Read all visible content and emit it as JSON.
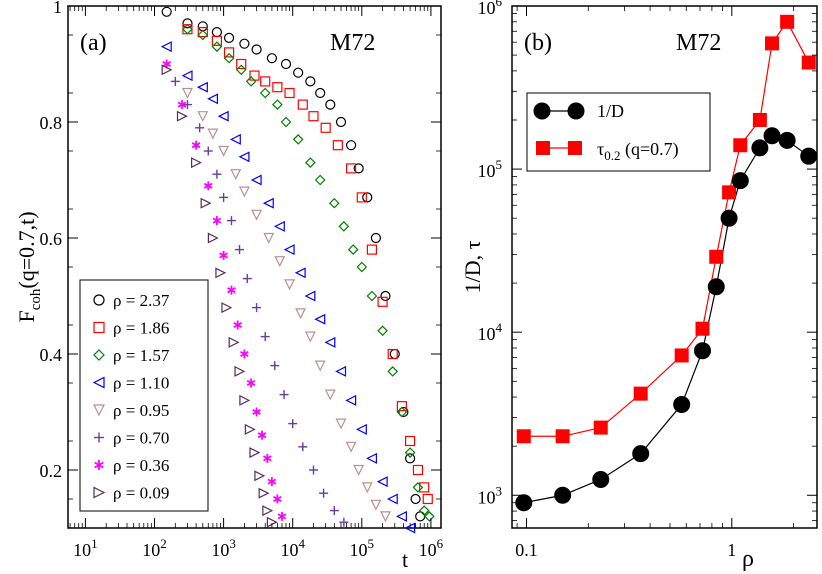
{
  "chart_data": [
    {
      "type": "scatter",
      "panel_label": "(a)",
      "model_label": "M72",
      "ylabel_main": "F",
      "ylabel_sub": "coh",
      "ylabel_rest": "(q=0.7,t)",
      "xlabel": "t",
      "xscale": "log",
      "xlim": [
        5.6,
        1400000
      ],
      "ylim": [
        0.1,
        1.0
      ],
      "x_ticks": [
        {
          "value": 10,
          "base": "10",
          "exp": "1"
        },
        {
          "value": 100,
          "base": "10",
          "exp": "2"
        },
        {
          "value": 1000,
          "base": "10",
          "exp": "3"
        },
        {
          "value": 10000,
          "base": "10",
          "exp": "4"
        },
        {
          "value": 100000,
          "base": "10",
          "exp": "5"
        },
        {
          "value": 1000000,
          "base": "10",
          "exp": "6"
        }
      ],
      "y_ticks": [
        {
          "value": 0.2,
          "label": "0.2"
        },
        {
          "value": 0.4,
          "label": "0.4"
        },
        {
          "value": 0.6,
          "label": "0.6"
        },
        {
          "value": 0.8,
          "label": "0.8"
        },
        {
          "value": 1.0,
          "label": "1"
        }
      ],
      "legend_position": "bottom-left",
      "series": [
        {
          "name": "ρ = 2.37",
          "marker": "circle",
          "color": "#000000",
          "points": [
            [
              150,
              0.99
            ],
            [
              300,
              0.97
            ],
            [
              500,
              0.965
            ],
            [
              800,
              0.955
            ],
            [
              1200,
              0.945
            ],
            [
              2000,
              0.935
            ],
            [
              3000,
              0.925
            ],
            [
              5000,
              0.91
            ],
            [
              8000,
              0.9
            ],
            [
              12000,
              0.885
            ],
            [
              18000,
              0.87
            ],
            [
              25000,
              0.85
            ],
            [
              35000,
              0.83
            ],
            [
              50000,
              0.8
            ],
            [
              70000,
              0.76
            ],
            [
              90000,
              0.72
            ],
            [
              120000,
              0.67
            ],
            [
              160000,
              0.6
            ],
            [
              220000,
              0.5
            ],
            [
              300000,
              0.4
            ],
            [
              400000,
              0.3
            ],
            [
              500000,
              0.22
            ],
            [
              600000,
              0.15
            ],
            [
              700000,
              0.12
            ]
          ]
        },
        {
          "name": "ρ = 1.86",
          "marker": "square",
          "color": "#ff0000",
          "points": [
            [
              300,
              0.96
            ],
            [
              500,
              0.955
            ],
            [
              800,
              0.94
            ],
            [
              1200,
              0.92
            ],
            [
              1800,
              0.9
            ],
            [
              2800,
              0.88
            ],
            [
              4000,
              0.87
            ],
            [
              6000,
              0.86
            ],
            [
              9000,
              0.85
            ],
            [
              14000,
              0.83
            ],
            [
              20000,
              0.81
            ],
            [
              30000,
              0.79
            ],
            [
              45000,
              0.76
            ],
            [
              70000,
              0.72
            ],
            [
              100000,
              0.67
            ],
            [
              140000,
              0.58
            ],
            [
              200000,
              0.49
            ],
            [
              280000,
              0.4
            ],
            [
              380000,
              0.31
            ],
            [
              500000,
              0.25
            ],
            [
              650000,
              0.2
            ],
            [
              800000,
              0.17
            ],
            [
              900000,
              0.15
            ]
          ]
        },
        {
          "name": "ρ = 1.57",
          "marker": "diamond",
          "color": "#008000",
          "points": [
            [
              300,
              0.96
            ],
            [
              500,
              0.95
            ],
            [
              800,
              0.93
            ],
            [
              1200,
              0.91
            ],
            [
              1800,
              0.89
            ],
            [
              2500,
              0.87
            ],
            [
              4000,
              0.85
            ],
            [
              6000,
              0.83
            ],
            [
              8000,
              0.8
            ],
            [
              12000,
              0.77
            ],
            [
              18000,
              0.73
            ],
            [
              25000,
              0.7
            ],
            [
              40000,
              0.66
            ],
            [
              55000,
              0.62
            ],
            [
              75000,
              0.58
            ],
            [
              100000,
              0.55
            ],
            [
              140000,
              0.5
            ],
            [
              200000,
              0.44
            ],
            [
              280000,
              0.37
            ],
            [
              380000,
              0.3
            ],
            [
              500000,
              0.23
            ],
            [
              650000,
              0.17
            ],
            [
              800000,
              0.13
            ],
            [
              950000,
              0.12
            ]
          ]
        },
        {
          "name": "ρ = 1.10",
          "marker": "triangle-left",
          "color": "#0000ff",
          "points": [
            [
              150,
              0.93
            ],
            [
              300,
              0.88
            ],
            [
              500,
              0.86
            ],
            [
              700,
              0.84
            ],
            [
              1000,
              0.81
            ],
            [
              1500,
              0.77
            ],
            [
              2000,
              0.74
            ],
            [
              3000,
              0.7
            ],
            [
              4500,
              0.66
            ],
            [
              6500,
              0.62
            ],
            [
              9000,
              0.58
            ],
            [
              13000,
              0.54
            ],
            [
              18000,
              0.5
            ],
            [
              25000,
              0.46
            ],
            [
              35000,
              0.42
            ],
            [
              50000,
              0.37
            ],
            [
              70000,
              0.32
            ],
            [
              100000,
              0.27
            ],
            [
              140000,
              0.22
            ],
            [
              200000,
              0.18
            ],
            [
              280000,
              0.15
            ],
            [
              380000,
              0.12
            ],
            [
              500000,
              0.1
            ]
          ]
        },
        {
          "name": "ρ = 0.95",
          "marker": "triangle-down",
          "color": "#bc8f8f",
          "points": [
            [
              300,
              0.85
            ],
            [
              500,
              0.81
            ],
            [
              700,
              0.78
            ],
            [
              1000,
              0.75
            ],
            [
              1500,
              0.71
            ],
            [
              2000,
              0.68
            ],
            [
              3000,
              0.64
            ],
            [
              4500,
              0.6
            ],
            [
              6500,
              0.56
            ],
            [
              9000,
              0.52
            ],
            [
              13000,
              0.47
            ],
            [
              18000,
              0.43
            ],
            [
              25000,
              0.38
            ],
            [
              35000,
              0.33
            ],
            [
              50000,
              0.28
            ],
            [
              70000,
              0.24
            ],
            [
              90000,
              0.2
            ],
            [
              120000,
              0.17
            ],
            [
              160000,
              0.14
            ],
            [
              220000,
              0.12
            ]
          ]
        },
        {
          "name": "ρ = 0.70",
          "marker": "plus",
          "color": "#6a3d9a",
          "points": [
            [
              200,
              0.87
            ],
            [
              300,
              0.83
            ],
            [
              450,
              0.79
            ],
            [
              600,
              0.75
            ],
            [
              800,
              0.71
            ],
            [
              1000,
              0.67
            ],
            [
              1300,
              0.63
            ],
            [
              1700,
              0.58
            ],
            [
              2200,
              0.53
            ],
            [
              3000,
              0.48
            ],
            [
              4000,
              0.43
            ],
            [
              5500,
              0.38
            ],
            [
              7500,
              0.33
            ],
            [
              10000,
              0.28
            ],
            [
              14000,
              0.24
            ],
            [
              20000,
              0.2
            ],
            [
              28000,
              0.16
            ],
            [
              40000,
              0.13
            ],
            [
              55000,
              0.11
            ]
          ]
        },
        {
          "name": "ρ = 0.36",
          "marker": "asterisk",
          "color": "#ff00ff",
          "points": [
            [
              150,
              0.9
            ],
            [
              250,
              0.83
            ],
            [
              400,
              0.76
            ],
            [
              600,
              0.69
            ],
            [
              800,
              0.63
            ],
            [
              1000,
              0.57
            ],
            [
              1300,
              0.51
            ],
            [
              1600,
              0.45
            ],
            [
              2000,
              0.4
            ],
            [
              2500,
              0.35
            ],
            [
              3000,
              0.3
            ],
            [
              3600,
              0.26
            ],
            [
              4300,
              0.22
            ],
            [
              5000,
              0.18
            ],
            [
              6000,
              0.15
            ],
            [
              7000,
              0.12
            ]
          ]
        },
        {
          "name": "ρ = 0.09",
          "marker": "triangle-right",
          "color": "#5a2a5a",
          "points": [
            [
              150,
              0.89
            ],
            [
              250,
              0.81
            ],
            [
              400,
              0.73
            ],
            [
              550,
              0.66
            ],
            [
              700,
              0.6
            ],
            [
              900,
              0.54
            ],
            [
              1100,
              0.48
            ],
            [
              1400,
              0.42
            ],
            [
              1700,
              0.37
            ],
            [
              2000,
              0.32
            ],
            [
              2400,
              0.27
            ],
            [
              2800,
              0.23
            ],
            [
              3300,
              0.19
            ],
            [
              3800,
              0.16
            ],
            [
              4300,
              0.13
            ],
            [
              5000,
              0.11
            ]
          ]
        }
      ]
    },
    {
      "type": "line",
      "panel_label": "(b)",
      "model_label": "M72",
      "ylabel": "1/D, τ",
      "xlabel": "ρ",
      "xscale": "log",
      "yscale": "log",
      "xlim": [
        0.085,
        2.6
      ],
      "ylim": [
        630,
        1000000
      ],
      "x_ticks": [
        {
          "value": 0.1,
          "label": "0.1"
        },
        {
          "value": 1,
          "label": "1"
        }
      ],
      "y_ticks": [
        {
          "value": 1000,
          "base": "10",
          "exp": "3"
        },
        {
          "value": 10000,
          "base": "10",
          "exp": "4"
        },
        {
          "value": 100000,
          "base": "10",
          "exp": "5"
        },
        {
          "value": 1000000,
          "base": "10",
          "exp": "6"
        }
      ],
      "legend_position": "top-left",
      "series": [
        {
          "name": "1/D",
          "marker": "circle",
          "color": "#000000",
          "x": [
            0.097,
            0.15,
            0.23,
            0.36,
            0.57,
            0.72,
            0.84,
            0.97,
            1.1,
            1.37,
            1.57,
            1.86,
            2.37
          ],
          "y": [
            900,
            1000,
            1250,
            1800,
            3600,
            7700,
            19000,
            50000,
            85000,
            135000,
            160000,
            150000,
            120000
          ]
        },
        {
          "name_main": "τ",
          "name_sub": "0.2",
          "name_rest": " (q=0.7)",
          "marker": "square",
          "color": "#ff0000",
          "x": [
            0.097,
            0.15,
            0.23,
            0.36,
            0.57,
            0.72,
            0.84,
            0.97,
            1.1,
            1.37,
            1.57,
            1.86,
            2.37
          ],
          "y": [
            2300,
            2300,
            2600,
            4200,
            7200,
            10500,
            29000,
            72000,
            140000,
            200000,
            590000,
            800000,
            450000
          ]
        }
      ]
    }
  ]
}
